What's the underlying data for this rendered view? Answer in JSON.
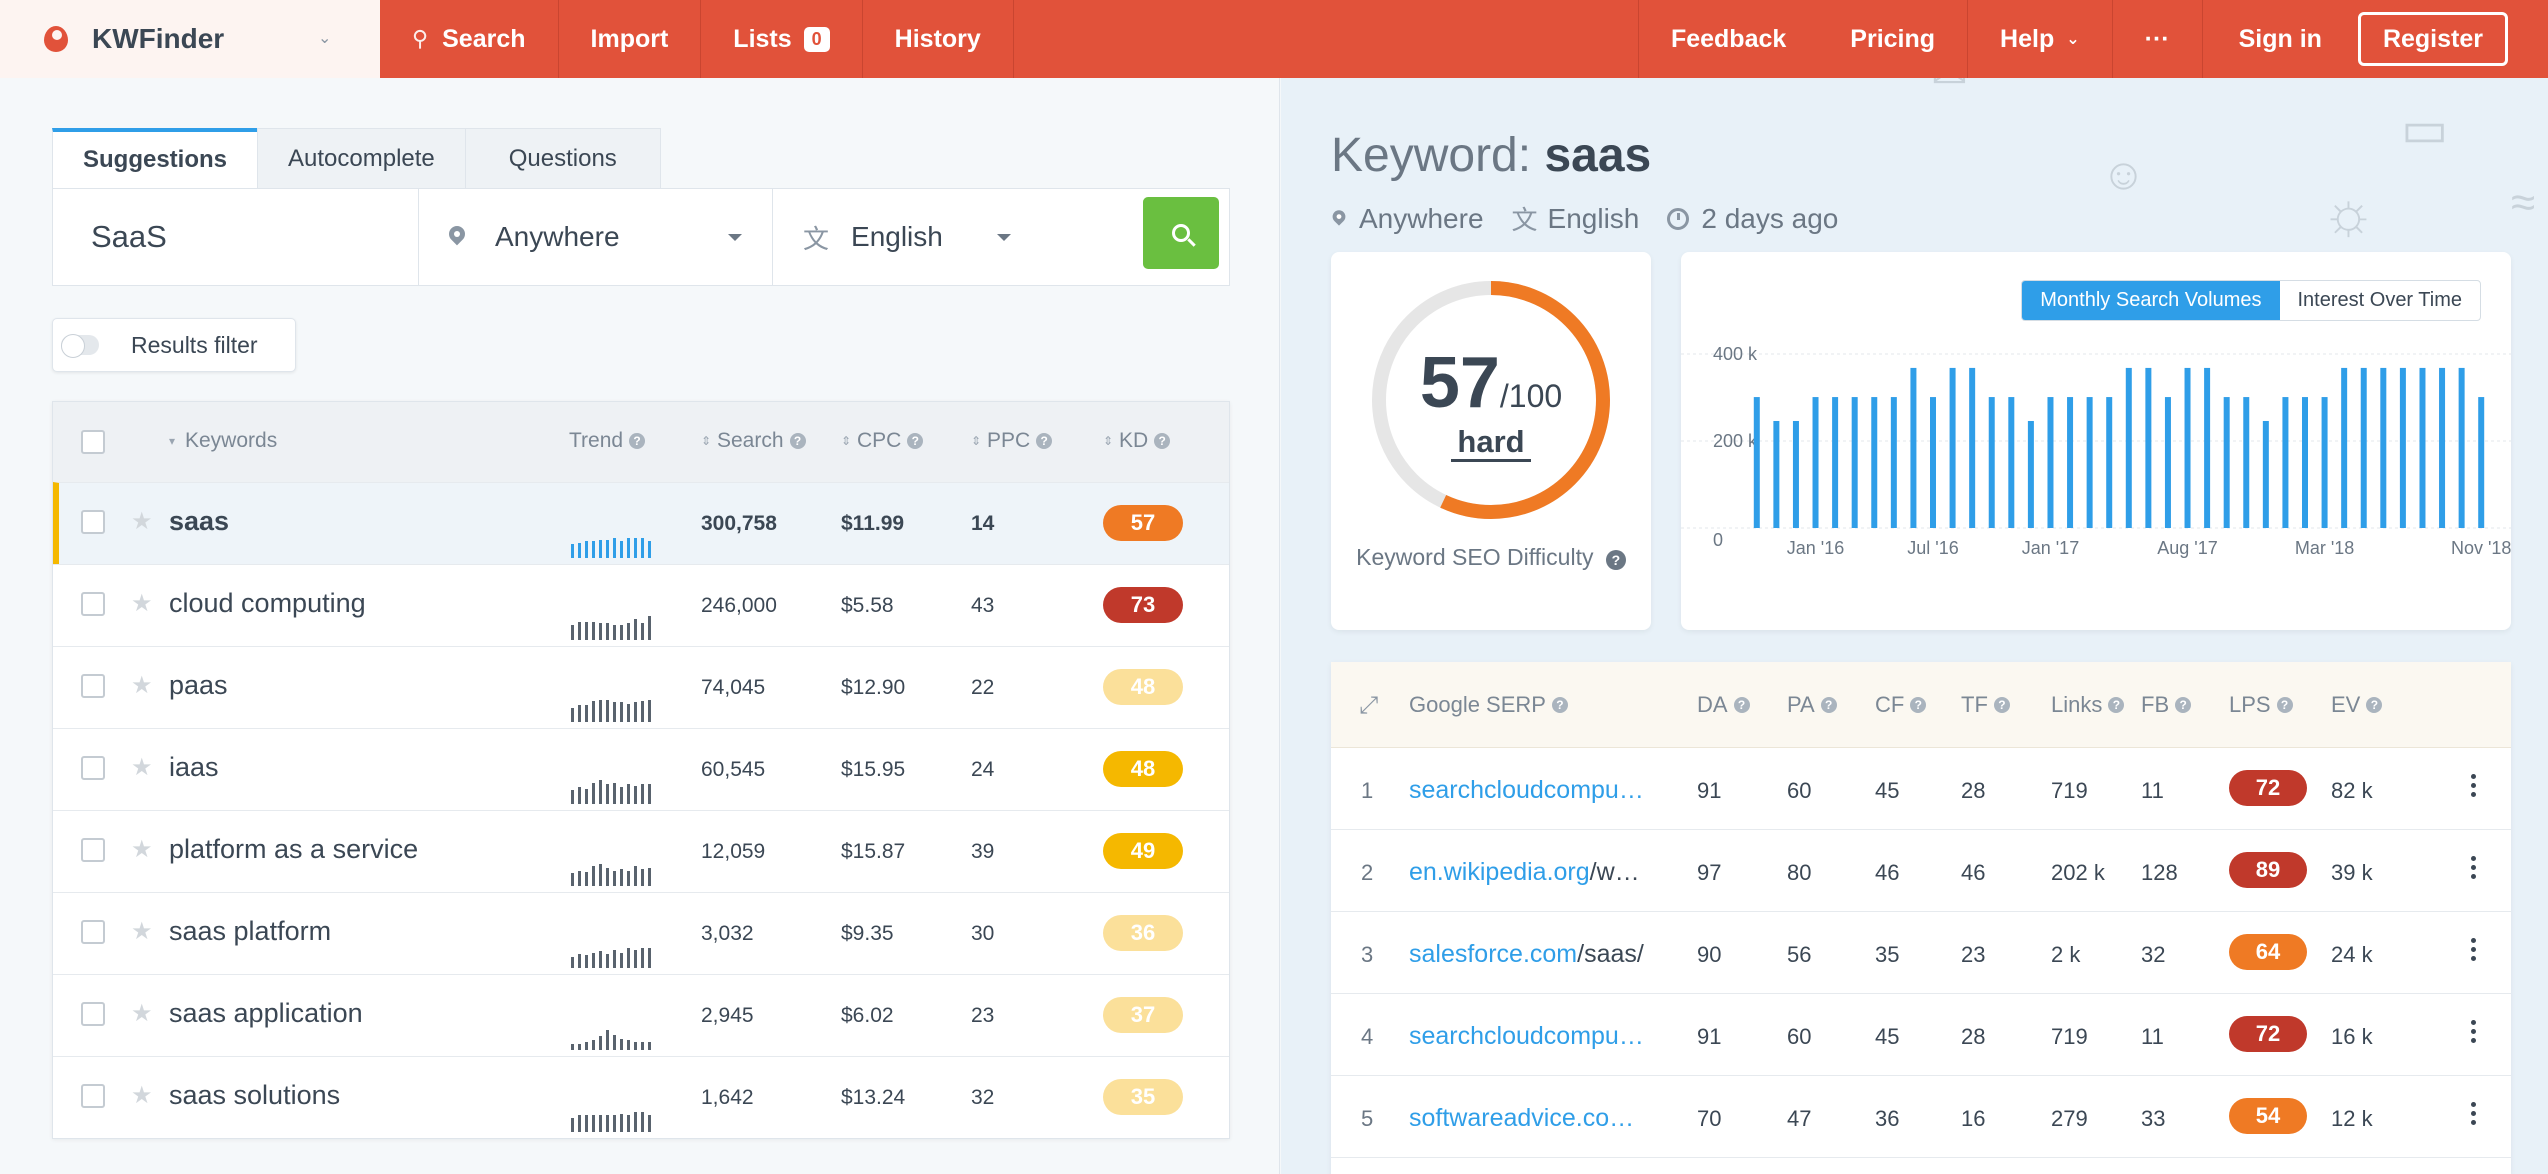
{
  "app": {
    "name": "KWFinder"
  },
  "nav": {
    "items": [
      {
        "label": "Search",
        "icon": "search-icon"
      },
      {
        "label": "Import"
      },
      {
        "label": "Lists",
        "badge": "0"
      },
      {
        "label": "History"
      }
    ],
    "right": [
      {
        "label": "Feedback"
      },
      {
        "label": "Pricing"
      },
      {
        "label": "Help"
      },
      {
        "label": "···"
      },
      {
        "label": "Sign in"
      }
    ],
    "register": "Register"
  },
  "search": {
    "tabs": [
      "Suggestions",
      "Autocomplete",
      "Questions"
    ],
    "keyword": "SaaS",
    "location": "Anywhere",
    "language": "English",
    "filter_label": "Results filter"
  },
  "table": {
    "headers": {
      "keywords": "Keywords",
      "trend": "Trend",
      "search": "Search",
      "cpc": "CPC",
      "ppc": "PPC",
      "kd": "KD"
    },
    "rows": [
      {
        "keyword": "saas",
        "search": "300,758",
        "cpc": "$11.99",
        "ppc": "14",
        "kd": "57",
        "kd_color": "#ef7a24",
        "trend": [
          0.5,
          0.55,
          0.6,
          0.6,
          0.65,
          0.65,
          0.7,
          0.6,
          0.7,
          0.7,
          0.7,
          0.6
        ]
      },
      {
        "keyword": "cloud computing",
        "search": "246,000",
        "cpc": "$5.58",
        "ppc": "43",
        "kd": "73",
        "kd_color": "#c0392b",
        "trend": [
          0.55,
          0.65,
          0.65,
          0.65,
          0.6,
          0.6,
          0.55,
          0.55,
          0.6,
          0.75,
          0.6,
          0.85
        ]
      },
      {
        "keyword": "paas",
        "search": "74,045",
        "cpc": "$12.90",
        "ppc": "22",
        "kd": "48",
        "kd_color": "#fbe09a",
        "trend": [
          0.5,
          0.6,
          0.6,
          0.75,
          0.8,
          0.8,
          0.7,
          0.7,
          0.65,
          0.7,
          0.75,
          0.8
        ]
      },
      {
        "keyword": "iaas",
        "search": "60,545",
        "cpc": "$15.95",
        "ppc": "24",
        "kd": "48",
        "kd_color": "#f5b800",
        "trend": [
          0.5,
          0.6,
          0.55,
          0.75,
          0.85,
          0.7,
          0.75,
          0.6,
          0.7,
          0.65,
          0.7,
          0.7
        ]
      },
      {
        "keyword": "platform as a service",
        "search": "12,059",
        "cpc": "$15.87",
        "ppc": "39",
        "kd": "49",
        "kd_color": "#f5b800",
        "trend": [
          0.45,
          0.55,
          0.5,
          0.7,
          0.8,
          0.65,
          0.55,
          0.6,
          0.55,
          0.7,
          0.6,
          0.65
        ]
      },
      {
        "keyword": "saas platform",
        "search": "3,032",
        "cpc": "$9.35",
        "ppc": "30",
        "kd": "36",
        "kd_color": "#fbe09a",
        "trend": [
          0.4,
          0.5,
          0.45,
          0.55,
          0.6,
          0.5,
          0.65,
          0.55,
          0.7,
          0.65,
          0.7,
          0.7
        ]
      },
      {
        "keyword": "saas application",
        "search": "2,945",
        "cpc": "$6.02",
        "ppc": "23",
        "kd": "37",
        "kd_color": "#fbe09a",
        "trend": [
          0.2,
          0.2,
          0.3,
          0.35,
          0.5,
          0.7,
          0.55,
          0.4,
          0.35,
          0.3,
          0.3,
          0.3
        ]
      },
      {
        "keyword": "saas solutions",
        "search": "1,642",
        "cpc": "$13.24",
        "ppc": "32",
        "kd": "35",
        "kd_color": "#fbe09a",
        "trend": [
          0.5,
          0.6,
          0.6,
          0.6,
          0.6,
          0.6,
          0.6,
          0.65,
          0.6,
          0.7,
          0.7,
          0.6
        ]
      }
    ]
  },
  "detail": {
    "title_prefix": "Keyword:",
    "keyword": "saas",
    "location": "Anywhere",
    "language": "English",
    "updated": "2 days ago",
    "difficulty": {
      "value": "57",
      "max": "/100",
      "label": "hard",
      "caption": "Keyword SEO Difficulty",
      "fraction": 0.57
    },
    "chart_tabs": [
      "Monthly Search Volumes",
      "Interest Over Time"
    ]
  },
  "chart_data": {
    "type": "bar",
    "title": "",
    "ylabel": "",
    "xlabel": "",
    "ylim": [
      0,
      400000
    ],
    "yticks": [
      {
        "value": 0,
        "label": "0"
      },
      {
        "value": 200000,
        "label": "200 k"
      },
      {
        "value": 400000,
        "label": "400 k"
      }
    ],
    "x_tick_labels": [
      {
        "index": 3,
        "label": "Jan '16"
      },
      {
        "index": 9,
        "label": "Jul '16"
      },
      {
        "index": 15,
        "label": "Jan '17"
      },
      {
        "index": 22,
        "label": "Aug '17"
      },
      {
        "index": 29,
        "label": "Mar '18"
      },
      {
        "index": 37,
        "label": "Nov '18"
      }
    ],
    "values": [
      301000,
      246000,
      246000,
      301000,
      301000,
      301000,
      301000,
      301000,
      368000,
      301000,
      368000,
      368000,
      301000,
      301000,
      246000,
      301000,
      301000,
      301000,
      301000,
      368000,
      368000,
      301000,
      368000,
      368000,
      301000,
      301000,
      246000,
      301000,
      301000,
      301000,
      368000,
      368000,
      368000,
      368000,
      368000,
      368000,
      368000,
      301000
    ],
    "color": "#2f9ee8"
  },
  "serp": {
    "headers": {
      "title": "Google SERP",
      "da": "DA",
      "pa": "PA",
      "cf": "CF",
      "tf": "TF",
      "links": "Links",
      "fb": "FB",
      "lps": "LPS",
      "ev": "EV"
    },
    "rows": [
      {
        "n": "1",
        "domain": "searchcloudcompu…",
        "path": "",
        "da": "91",
        "pa": "60",
        "cf": "45",
        "tf": "28",
        "links": "719",
        "fb": "11",
        "lps": "72",
        "lps_color": "#c0392b",
        "ev": "82 k"
      },
      {
        "n": "2",
        "domain": "en.wikipedia.org",
        "path": "/w…",
        "da": "97",
        "pa": "80",
        "cf": "46",
        "tf": "46",
        "links": "202 k",
        "fb": "128",
        "lps": "89",
        "lps_color": "#c0392b",
        "ev": "39 k"
      },
      {
        "n": "3",
        "domain": "salesforce.com",
        "path": "/saas/",
        "da": "90",
        "pa": "56",
        "cf": "35",
        "tf": "23",
        "links": "2 k",
        "fb": "32",
        "lps": "64",
        "lps_color": "#ef7a24",
        "ev": "24 k"
      },
      {
        "n": "4",
        "domain": "searchcloudcompu…",
        "path": "",
        "da": "91",
        "pa": "60",
        "cf": "45",
        "tf": "28",
        "links": "719",
        "fb": "11",
        "lps": "72",
        "lps_color": "#c0392b",
        "ev": "16 k"
      },
      {
        "n": "5",
        "domain": "softwareadvice.co…",
        "path": "",
        "da": "70",
        "pa": "47",
        "cf": "36",
        "tf": "16",
        "links": "279",
        "fb": "33",
        "lps": "54",
        "lps_color": "#ef7a24",
        "ev": "12 k"
      }
    ]
  }
}
